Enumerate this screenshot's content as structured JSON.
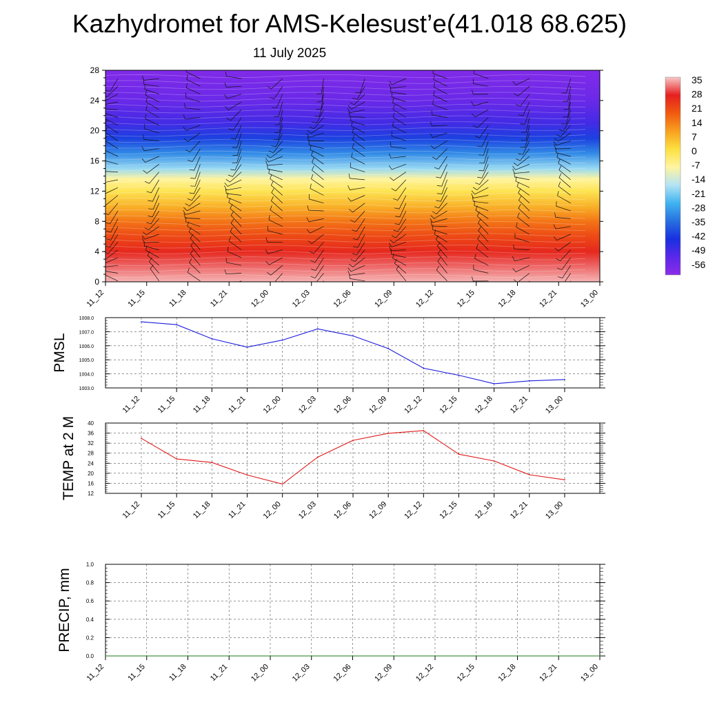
{
  "header": {
    "title": "Kazhydromet for AMS-Kelesust’e(41.018 68.625)",
    "subtitle": "11 July 2025"
  },
  "chart_data": [
    {
      "type": "heatmap",
      "name": "vertical-section",
      "x_ticks": [
        "11_12",
        "11_15",
        "11_18",
        "11_21",
        "12_00",
        "12_03",
        "12_06",
        "12_09",
        "12_12",
        "12_15",
        "12_18",
        "12_21",
        "13_00"
      ],
      "y_ticks": [
        "0",
        "4",
        "8",
        "12",
        "16",
        "20",
        "24",
        "28"
      ],
      "ylim": [
        0,
        28
      ],
      "colorbar": {
        "labels": [
          "35",
          "28",
          "21",
          "14",
          "7",
          "0",
          "-7",
          "-14",
          "-21",
          "-28",
          "-35",
          "-42",
          "-49",
          "-56"
        ],
        "colors": [
          "#f8c8c8",
          "#e52020",
          "#f05a10",
          "#f8a020",
          "#fce040",
          "#fff4a0",
          "#b4e4f4",
          "#40b4f0",
          "#2870e0",
          "#1830e0",
          "#5a28e8",
          "#8c2ce8"
        ]
      },
      "profile": [
        {
          "y": 0,
          "value": 34
        },
        {
          "y": 2,
          "value": 30
        },
        {
          "y": 4,
          "value": 25
        },
        {
          "y": 6,
          "value": 20
        },
        {
          "y": 8,
          "value": 14
        },
        {
          "y": 10,
          "value": 6
        },
        {
          "y": 12,
          "value": -2
        },
        {
          "y": 13.6,
          "value": -9
        },
        {
          "y": 15,
          "value": -20
        },
        {
          "y": 17,
          "value": -32
        },
        {
          "y": 19,
          "value": -42
        },
        {
          "y": 21,
          "value": -50
        },
        {
          "y": 24,
          "value": -56
        },
        {
          "y": 28,
          "value": -60
        }
      ],
      "grid": false
    },
    {
      "type": "line",
      "name": "pmsl",
      "ylabel": "PMSL",
      "x": [
        "11_12",
        "11_15",
        "11_18",
        "11_21",
        "12_00",
        "12_03",
        "12_06",
        "12_09",
        "12_12",
        "12_15",
        "12_18",
        "12_21",
        "13_00"
      ],
      "series": [
        {
          "values": [
            1007.7,
            1007.5,
            1006.5,
            1005.9,
            1006.4,
            1007.2,
            1006.7,
            1005.8,
            1004.4,
            1003.9,
            1003.3,
            1003.5,
            1003.6
          ]
        }
      ],
      "ylim": [
        1003.0,
        1008.0
      ],
      "y_ticks": [
        "1003.0",
        "1004.0",
        "1005.0",
        "1006.0",
        "1007.0",
        "1008.0"
      ],
      "color": "#1a1adc",
      "grid": true
    },
    {
      "type": "line",
      "name": "temp-2m",
      "ylabel": "TEMP at 2 M",
      "x": [
        "11_12",
        "11_15",
        "11_18",
        "11_21",
        "12_00",
        "12_03",
        "12_06",
        "12_09",
        "12_12",
        "12_15",
        "12_18",
        "12_21",
        "13_00"
      ],
      "series": [
        {
          "values": [
            33.9,
            25.7,
            24.3,
            19.3,
            15.7,
            26.4,
            33.1,
            35.9,
            37.0,
            27.6,
            24.9,
            19.4,
            17.4
          ]
        }
      ],
      "ylim": [
        12,
        40
      ],
      "y_ticks": [
        "12",
        "16",
        "20",
        "24",
        "28",
        "32",
        "36",
        "40"
      ],
      "color": "#e01a1a",
      "grid": true
    },
    {
      "type": "line",
      "name": "precip",
      "ylabel": "PRECIP, mm",
      "x": [
        "11_12",
        "11_15",
        "11_18",
        "11_21",
        "12_00",
        "12_03",
        "12_06",
        "12_09",
        "12_12",
        "12_15",
        "12_18",
        "12_21",
        "13_00"
      ],
      "series": [
        {
          "values": [
            0,
            0,
            0,
            0,
            0,
            0,
            0,
            0,
            0,
            0,
            0,
            0,
            0
          ]
        }
      ],
      "ylim": [
        0,
        1.0
      ],
      "y_ticks": [
        "0.0",
        "0.2",
        "0.4",
        "0.6",
        "0.8",
        "1.0"
      ],
      "color": "#1a7a1a",
      "grid": true
    }
  ]
}
